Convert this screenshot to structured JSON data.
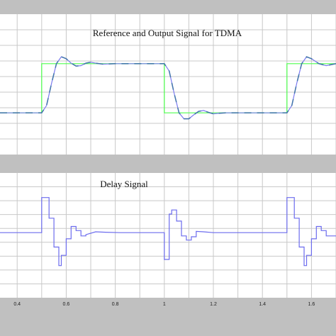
{
  "window": {
    "background": "#c0c0c0",
    "plot_background": "#ffffff",
    "grid_color": "#c8c8c8"
  },
  "panels": [
    {
      "title": "Reference and Output Signal for TDMA",
      "series": [
        {
          "name": "",
          "color": "#4dff4d",
          "style": "solid",
          "role": "reference"
        },
        {
          "name": "",
          "color": "#7b7bf0",
          "style": "solid",
          "role": "output"
        },
        {
          "name": "",
          "color": "#2f6f98",
          "style": "dashed",
          "role": "output-overlay"
        }
      ]
    },
    {
      "title": "Delay Signal",
      "series": [
        {
          "name": "",
          "color": "#6c6cee",
          "style": "solid",
          "role": "delay"
        }
      ]
    }
  ],
  "x_tick_labels": [
    "0.4",
    "0.6",
    "0.8",
    "1",
    "1.2",
    "1.4",
    "1.6"
  ],
  "chart_data": [
    {
      "type": "line",
      "title": "Reference and Output Signal for TDMA",
      "xlim": [
        0.33,
        1.7
      ],
      "ylim": [
        -0.4,
        1.4
      ],
      "series": [
        {
          "name": "",
          "x": [
            0.33,
            0.5,
            0.5,
            1.0,
            1.0,
            1.5,
            1.5,
            1.7
          ],
          "y": [
            0.0,
            0.0,
            1.0,
            1.0,
            0.0,
            0.0,
            1.0,
            1.0
          ]
        },
        {
          "name": "",
          "x": [
            0.33,
            0.5,
            0.52,
            0.54,
            0.56,
            0.58,
            0.6,
            0.62,
            0.64,
            0.66,
            0.68,
            0.7,
            0.72,
            0.75,
            0.8,
            0.9,
            1.0,
            1.02,
            1.04,
            1.06,
            1.08,
            1.1,
            1.12,
            1.14,
            1.16,
            1.18,
            1.2,
            1.22,
            1.25,
            1.3,
            1.4,
            1.5,
            1.52,
            1.54,
            1.56,
            1.58,
            1.6,
            1.63,
            1.66,
            1.7
          ],
          "y": [
            0.0,
            0.0,
            0.15,
            0.6,
            1.0,
            1.14,
            1.1,
            1.01,
            0.95,
            0.96,
            1.01,
            1.03,
            1.01,
            0.99,
            1.0,
            1.0,
            1.0,
            0.85,
            0.4,
            0.0,
            -0.12,
            -0.12,
            -0.04,
            0.03,
            0.05,
            0.01,
            -0.02,
            -0.01,
            0.0,
            0.0,
            0.0,
            0.0,
            0.15,
            0.6,
            1.0,
            1.14,
            1.1,
            1.0,
            0.96,
            1.0
          ]
        }
      ]
    },
    {
      "type": "line",
      "title": "Delay Signal",
      "xlim": [
        0.33,
        1.7
      ],
      "ylim": [
        -1.2,
        1.0
      ],
      "series": [
        {
          "name": "",
          "x": [
            0.33,
            0.5,
            0.5,
            0.53,
            0.53,
            0.55,
            0.55,
            0.57,
            0.57,
            0.58,
            0.58,
            0.6,
            0.6,
            0.62,
            0.62,
            0.64,
            0.64,
            0.66,
            0.66,
            0.68,
            0.68,
            0.72,
            0.76,
            0.82,
            0.9,
            1.0,
            1.0,
            1.02,
            1.02,
            1.03,
            1.03,
            1.05,
            1.05,
            1.07,
            1.07,
            1.09,
            1.09,
            1.11,
            1.11,
            1.13,
            1.13,
            1.16,
            1.2,
            1.26,
            1.35,
            1.5,
            1.5,
            1.53,
            1.53,
            1.55,
            1.55,
            1.57,
            1.57,
            1.58,
            1.58,
            1.6,
            1.6,
            1.62,
            1.62,
            1.64,
            1.64,
            1.66,
            1.66,
            1.7
          ],
          "y": [
            0.0,
            0.0,
            0.85,
            0.85,
            0.35,
            0.35,
            -0.35,
            -0.35,
            -0.8,
            -0.8,
            -0.55,
            -0.55,
            -0.15,
            -0.15,
            0.15,
            0.15,
            0.05,
            0.05,
            -0.08,
            -0.08,
            -0.05,
            0.02,
            0.01,
            0.0,
            0.0,
            0.0,
            -0.65,
            -0.65,
            0.45,
            0.45,
            0.55,
            0.55,
            0.28,
            0.28,
            -0.08,
            -0.08,
            -0.18,
            -0.18,
            -0.1,
            -0.1,
            0.03,
            0.02,
            0.0,
            0.0,
            0.0,
            0.0,
            0.85,
            0.85,
            0.35,
            0.35,
            -0.35,
            -0.35,
            -0.8,
            -0.8,
            -0.55,
            -0.55,
            -0.15,
            -0.15,
            0.15,
            0.15,
            0.05,
            0.05,
            -0.08,
            -0.08
          ]
        }
      ]
    }
  ]
}
